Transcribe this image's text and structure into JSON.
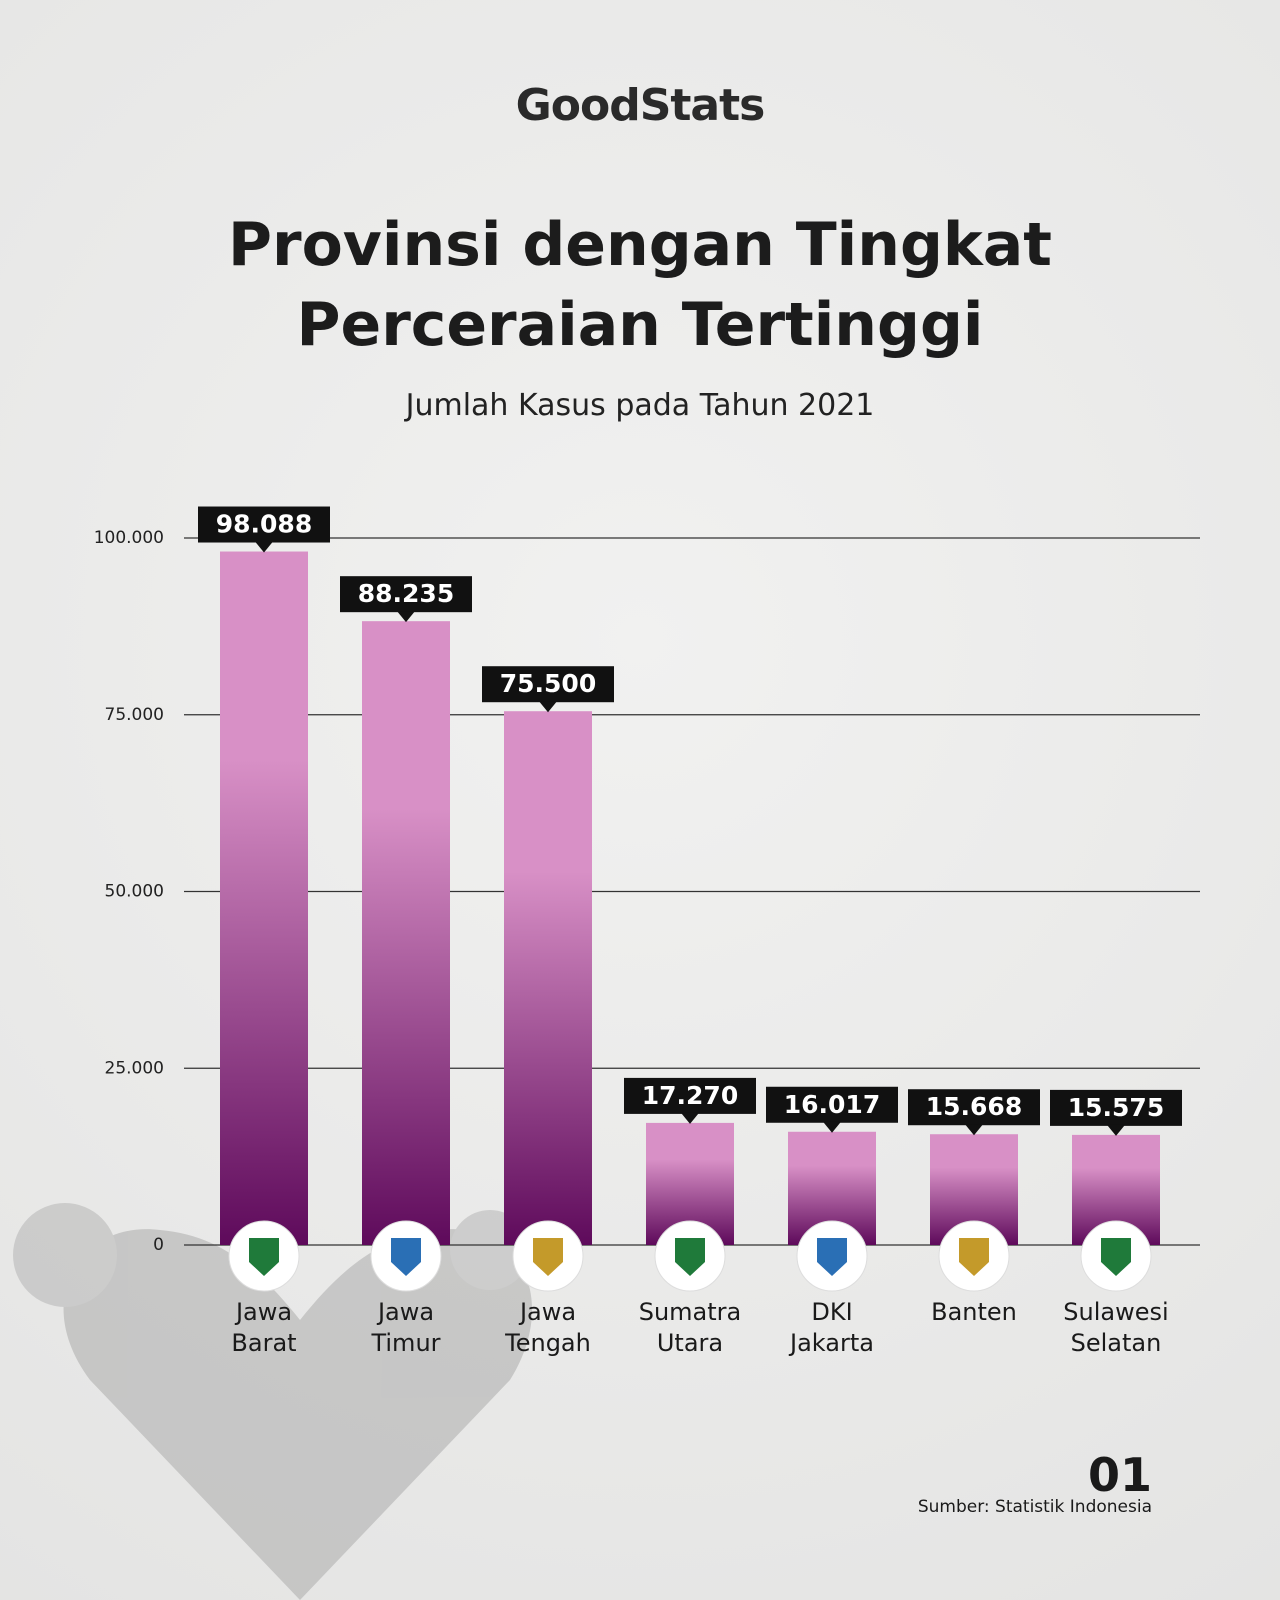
{
  "logo": "GoodStats",
  "chart_data": {
    "type": "bar",
    "title": "Provinsi dengan Tingkat Perceraian Tertinggi",
    "subtitle": "Jumlah Kasus pada Tahun 2021",
    "categories": [
      "Jawa Barat",
      "Jawa Timur",
      "Jawa Tengah",
      "Sumatra Utara",
      "DKI Jakarta",
      "Banten",
      "Sulawesi Selatan"
    ],
    "values": [
      98088,
      88235,
      75500,
      17270,
      16017,
      15668,
      15575
    ],
    "value_labels": [
      "98.088",
      "88.235",
      "75.500",
      "17.270",
      "16.017",
      "15.668",
      "15.575"
    ],
    "gradient": [
      "#d890c6",
      "#5e0a5b"
    ],
    "ylim": [
      0,
      100000
    ],
    "yticks": [
      0,
      {
        "value": 25000,
        "label": "25.000"
      },
      {
        "value": 50000,
        "label": "50.000"
      },
      {
        "value": 75000,
        "label": "75.000"
      },
      {
        "value": 100000,
        "label": "100.000"
      }
    ],
    "grid": true
  },
  "page_number": "01",
  "source": "Sumber: Statistik Indonesia"
}
